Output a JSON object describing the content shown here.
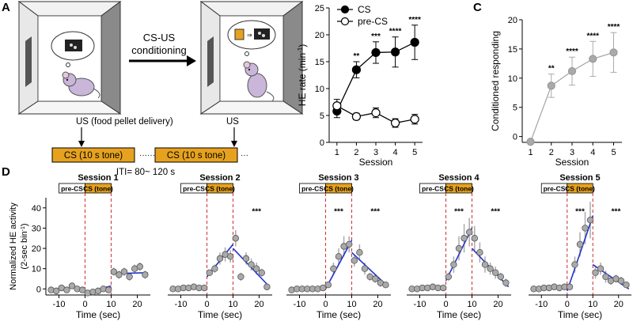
{
  "panel_letters": {
    "a": "A",
    "b": "B",
    "c": "C",
    "d": "D"
  },
  "schematic": {
    "conditioning_label_line1": "CS-US",
    "conditioning_label_line2": "conditioning",
    "us_label_1": "US (food pellet delivery)",
    "us_label_2": "US",
    "cs_box_1": "CS (10 s tone)",
    "cs_box_2": "CS (10 s tone)",
    "dots_between": "············",
    "dots_after": "···",
    "iti": "ITI= 80~ 120 s",
    "colors": {
      "cs_box": "#E6A21E",
      "wall_dark": "#8a8a8a",
      "mouse": "#c9b6d9"
    }
  },
  "chart_data": [
    {
      "id": "B",
      "type": "line",
      "xlabel": "Session",
      "ylabel": "HE rate (min",
      "ylabel_sup": "-1",
      "ylabel_close": ")",
      "x": [
        1,
        2,
        3,
        4,
        5
      ],
      "xlim": [
        0.6,
        5.4
      ],
      "ylim": [
        0,
        25
      ],
      "yticks": [
        0,
        5,
        10,
        15,
        20,
        25
      ],
      "legend_position": "top-left",
      "series": [
        {
          "name": "CS",
          "fill": "filled",
          "values": [
            5.8,
            13.5,
            16.7,
            16.8,
            18.6
          ],
          "err": [
            1.2,
            1.5,
            2.0,
            2.8,
            3.2
          ]
        },
        {
          "name": "pre-CS",
          "fill": "open",
          "values": [
            6.8,
            4.8,
            5.5,
            3.6,
            4.3
          ],
          "err": [
            1.2,
            0.6,
            0.9,
            0.8,
            0.9
          ]
        }
      ],
      "significance": [
        {
          "x": 2,
          "label": "**"
        },
        {
          "x": 3,
          "label": "***"
        },
        {
          "x": 4,
          "label": "****"
        },
        {
          "x": 5,
          "label": "****"
        }
      ]
    },
    {
      "id": "C",
      "type": "line",
      "xlabel": "Session",
      "ylabel": "Conditioned responding",
      "x": [
        1,
        2,
        3,
        4,
        5
      ],
      "xlim": [
        0.6,
        5.4
      ],
      "ylim": [
        -1,
        20
      ],
      "yticks": [
        0,
        5,
        10,
        15,
        20
      ],
      "series": [
        {
          "values": [
            -0.9,
            8.7,
            11.2,
            13.3,
            14.4
          ],
          "err": [
            0,
            2.0,
            2.4,
            3.0,
            3.4
          ]
        }
      ],
      "significance": [
        {
          "x": 2,
          "label": "**"
        },
        {
          "x": 3,
          "label": "****"
        },
        {
          "x": 4,
          "label": "****"
        },
        {
          "x": 5,
          "label": "****"
        }
      ]
    }
  ],
  "panel_d": {
    "ylabel_line1": "Normalized HE activity",
    "ylabel_line2": "(2-sec bin",
    "ylabel_sup": "-1",
    "ylabel_close": ")",
    "xlabel": "Time (sec)",
    "xticks": [
      -10,
      0,
      10,
      20
    ],
    "yticks": [
      0,
      10,
      20,
      30,
      40
    ],
    "xlim": [
      -15,
      25
    ],
    "ylim": [
      -3,
      45
    ],
    "bar_pre": "pre-CS",
    "bar_cs": "CS (tone)",
    "cs_color": "#E6A21E",
    "fit_color": "#2233cc",
    "dashed_color": "#d23b3b",
    "sessions": [
      {
        "title": "Session 1",
        "x": [
          -13,
          -11,
          -9,
          -7,
          -5,
          -3,
          -1,
          1,
          3,
          5,
          7,
          9,
          11,
          13,
          15,
          17,
          19,
          21,
          23
        ],
        "y": [
          -0.5,
          -1,
          0.5,
          -0.5,
          1.5,
          0,
          -0.5,
          -2,
          -1.5,
          -1,
          0,
          -0.5,
          8.5,
          7,
          8.5,
          6,
          10,
          11,
          7
        ],
        "err": [
          0,
          0,
          0,
          0,
          0,
          0,
          0,
          0,
          0,
          0,
          0,
          0,
          2,
          2,
          2,
          2,
          2,
          2,
          2
        ],
        "fit1": [
          [
            0,
            -2
          ],
          [
            10,
            1.5
          ]
        ],
        "fit2": [
          [
            10,
            7.5
          ],
          [
            24,
            8
          ]
        ],
        "stars1": "",
        "stars2": ""
      },
      {
        "title": "Session 2",
        "x": [
          -13,
          -11,
          -9,
          -7,
          -5,
          -3,
          -1,
          1,
          3,
          5,
          7,
          9,
          11,
          13,
          15,
          17,
          19,
          21,
          23
        ],
        "y": [
          0,
          0,
          0.5,
          0.5,
          1,
          0.5,
          0.5,
          8,
          10,
          15,
          17,
          16,
          25,
          6,
          15,
          12,
          10,
          8,
          1
        ],
        "err": [
          0,
          0,
          0,
          0,
          0,
          0,
          0,
          1.5,
          2,
          3,
          3.5,
          3,
          4,
          2,
          3,
          3,
          3,
          2,
          1
        ],
        "fit1": [
          [
            0,
            6
          ],
          [
            10,
            22
          ]
        ],
        "fit2": [
          [
            10,
            20
          ],
          [
            24,
            1
          ]
        ],
        "stars1": "",
        "stars2": "***"
      },
      {
        "title": "Session 3",
        "x": [
          -13,
          -11,
          -9,
          -7,
          -5,
          -3,
          -1,
          1,
          3,
          5,
          7,
          9,
          11,
          13,
          15,
          17,
          19,
          21,
          23
        ],
        "y": [
          -0.5,
          0,
          0,
          0,
          0,
          0,
          0.5,
          2,
          10,
          16,
          21,
          22,
          14,
          18,
          10,
          6,
          5,
          3,
          2
        ],
        "err": [
          0,
          0,
          0,
          0,
          0,
          0,
          0,
          1,
          3,
          4,
          5,
          4,
          3,
          4,
          3,
          2,
          2,
          2,
          1.5
        ],
        "fit1": [
          [
            0,
            0
          ],
          [
            10,
            24
          ]
        ],
        "fit2": [
          [
            10,
            18
          ],
          [
            24,
            1
          ]
        ],
        "stars1": "***",
        "stars2": "***"
      },
      {
        "title": "Session 4",
        "x": [
          -13,
          -11,
          -9,
          -7,
          -5,
          -3,
          -1,
          1,
          3,
          5,
          7,
          9,
          11,
          13,
          15,
          17,
          19,
          21,
          23
        ],
        "y": [
          0,
          0,
          0.5,
          0.5,
          1,
          0.5,
          0.5,
          6,
          12,
          20,
          25,
          28,
          25,
          18,
          12,
          10,
          8,
          6,
          3
        ],
        "err": [
          0,
          0,
          0,
          0,
          0,
          0,
          0,
          2,
          4,
          6,
          7,
          7,
          6,
          5,
          4,
          3,
          3,
          2,
          2
        ],
        "fit1": [
          [
            0,
            4
          ],
          [
            10,
            30
          ]
        ],
        "fit2": [
          [
            10,
            20
          ],
          [
            24,
            1
          ]
        ],
        "stars1": "***",
        "stars2": "***"
      },
      {
        "title": "Session 5",
        "x": [
          -13,
          -11,
          -9,
          -7,
          -5,
          -3,
          -1,
          1,
          3,
          5,
          7,
          9,
          11,
          13,
          15,
          17,
          19,
          21,
          23
        ],
        "y": [
          0,
          0,
          0.5,
          0.5,
          1,
          0.5,
          1,
          1,
          12,
          22,
          30,
          34,
          8,
          10,
          6,
          4,
          5,
          4,
          2
        ],
        "err": [
          0,
          0,
          0,
          0,
          0,
          0,
          0,
          1,
          4,
          6,
          8,
          9,
          3,
          3,
          3,
          2,
          2,
          2,
          1.5
        ],
        "fit1": [
          [
            0,
            -1
          ],
          [
            10,
            36
          ]
        ],
        "fit2": [
          [
            10,
            12
          ],
          [
            24,
            0
          ]
        ],
        "stars1": "***",
        "stars2": "***"
      }
    ]
  }
}
